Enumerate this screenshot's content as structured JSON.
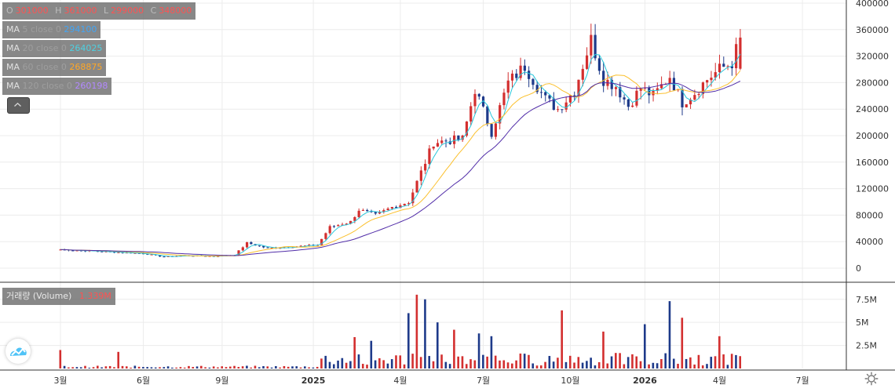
{
  "legend": {
    "ohlc": {
      "open": "301000",
      "high": "361000",
      "low": "299000",
      "close": "348000"
    },
    "ma": [
      {
        "label": "MA",
        "period": "5 close 0",
        "value": "294100",
        "color": "#2196f3"
      },
      {
        "label": "MA",
        "period": "20 close 0",
        "value": "264025",
        "color": "#26c6da"
      },
      {
        "label": "MA",
        "period": "60 close 0",
        "value": "268875",
        "color": "#ff9800"
      },
      {
        "label": "MA",
        "period": "120 close 0",
        "value": "260198",
        "color": "#7e57c2"
      }
    ],
    "volume": {
      "label": "거래량 (Volume)",
      "value": "1.339M"
    }
  },
  "colors": {
    "up": "#d32f2f",
    "down": "#1e3a8a",
    "ma5": "#2196f3",
    "ma20": "#26c6da",
    "ma60": "#fbc02d",
    "ma120": "#512da8"
  },
  "chart_data": [
    {
      "type": "candlestick",
      "x_axis_labels": [
        "3월",
        "6월",
        "9월",
        "2025",
        "4월",
        "7월",
        "10월",
        "2026",
        "4월",
        "7월"
      ],
      "y_tick_labels": [
        "0",
        "40000",
        "80000",
        "120000",
        "160000",
        "200000",
        "240000",
        "280000",
        "320000",
        "360000",
        "400000"
      ],
      "ylim": [
        0,
        400000
      ],
      "grid": true,
      "price_path": {
        "weeks": [
          0,
          10,
          20,
          25,
          30,
          37,
          42,
          45,
          50,
          55,
          62,
          65,
          70,
          72,
          76,
          80,
          84,
          90,
          97,
          100,
          104,
          108,
          112,
          117,
          120,
          124,
          128,
          131,
          134,
          137,
          140,
          143,
          147,
          150,
          153,
          156,
          159,
          162,
          164
        ],
        "close": [
          28000,
          25000,
          22000,
          17000,
          19000,
          18000,
          20000,
          38000,
          30000,
          32000,
          35000,
          62000,
          70000,
          88000,
          80000,
          92000,
          100000,
          190000,
          195000,
          270000,
          205000,
          280000,
          305000,
          255000,
          240000,
          268000,
          345000,
          285000,
          275000,
          245000,
          272000,
          260000,
          290000,
          250000,
          265000,
          285000,
          300000,
          310000,
          348000
        ]
      }
    },
    {
      "type": "bar",
      "name": "거래량 (Volume)",
      "y_tick_labels": [
        "2.5M",
        "5M",
        "7.5M"
      ],
      "ylim": [
        0,
        8500000
      ],
      "spikes": [
        {
          "week": 0,
          "value": 2000000
        },
        {
          "week": 14,
          "value": 1800000
        },
        {
          "week": 71,
          "value": 3400000
        },
        {
          "week": 75,
          "value": 3000000
        },
        {
          "week": 84,
          "value": 6000000
        },
        {
          "week": 86,
          "value": 8000000
        },
        {
          "week": 88,
          "value": 7500000
        },
        {
          "week": 91,
          "value": 5000000
        },
        {
          "week": 95,
          "value": 4200000
        },
        {
          "week": 101,
          "value": 3800000
        },
        {
          "week": 104,
          "value": 3500000
        },
        {
          "week": 121,
          "value": 6300000
        },
        {
          "week": 131,
          "value": 4000000
        },
        {
          "week": 141,
          "value": 4800000
        },
        {
          "week": 147,
          "value": 7300000
        },
        {
          "week": 150,
          "value": 5500000
        },
        {
          "week": 159,
          "value": 3500000
        },
        {
          "week": 165,
          "value": 3300000
        },
        {
          "week": 176,
          "value": 2600000
        },
        {
          "week": 186,
          "value": 1600000
        },
        {
          "week": 196,
          "value": 1300000
        }
      ]
    }
  ]
}
